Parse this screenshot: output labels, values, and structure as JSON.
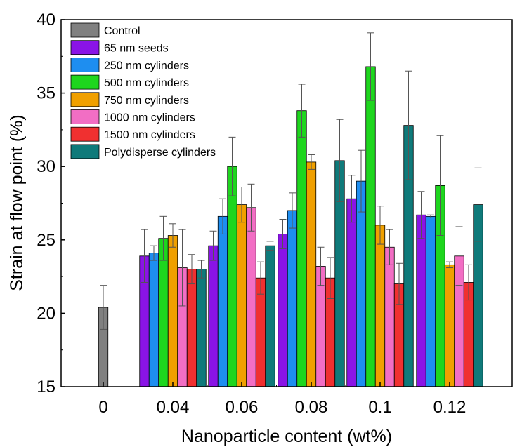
{
  "chart_data": {
    "type": "bar",
    "xlabel": "Nanoparticle content (wt%)",
    "ylabel": "Strain at flow point (%)",
    "ylim": [
      15,
      40
    ],
    "yticks": [
      15,
      20,
      25,
      30,
      35,
      40
    ],
    "categories": [
      "0",
      "0.04",
      "0.06",
      "0.08",
      "0.1",
      "0.12"
    ],
    "legend_position": "top-left",
    "series": [
      {
        "name": "Control",
        "color": "#808080",
        "values": [
          20.4,
          null,
          null,
          null,
          null,
          null
        ],
        "errors": [
          1.5,
          null,
          null,
          null,
          null,
          null
        ]
      },
      {
        "name": "65 nm seeds",
        "color": "#8a14e6",
        "values": [
          null,
          23.9,
          24.6,
          25.4,
          27.8,
          26.7
        ],
        "errors": [
          null,
          1.8,
          1.0,
          1.0,
          1.6,
          1.6
        ]
      },
      {
        "name": "250 nm cylinders",
        "color": "#1e8ef0",
        "values": [
          null,
          24.1,
          26.6,
          27.0,
          29.0,
          26.6
        ],
        "errors": [
          null,
          0.5,
          1.2,
          1.2,
          2.1,
          0.1
        ]
      },
      {
        "name": "500 nm cylinders",
        "color": "#1ed61e",
        "values": [
          null,
          25.1,
          30.0,
          33.8,
          36.8,
          28.7
        ],
        "errors": [
          null,
          1.5,
          2.0,
          1.8,
          2.3,
          3.4
        ]
      },
      {
        "name": "750 nm cylinders",
        "color": "#f0a000",
        "values": [
          null,
          25.3,
          27.4,
          30.3,
          26.0,
          23.3
        ],
        "errors": [
          null,
          0.8,
          1.2,
          0.5,
          1.3,
          0.2
        ]
      },
      {
        "name": "1000 nm cylinders",
        "color": "#f26ec4",
        "values": [
          null,
          23.1,
          27.2,
          23.2,
          24.5,
          23.9
        ],
        "errors": [
          null,
          2.6,
          1.6,
          1.3,
          1.2,
          2.0
        ]
      },
      {
        "name": "1500 nm cylinders",
        "color": "#f03030",
        "values": [
          null,
          23.0,
          22.4,
          22.4,
          22.0,
          22.1
        ],
        "errors": [
          null,
          1.0,
          1.1,
          1.4,
          1.4,
          1.2
        ]
      },
      {
        "name": "Polydisperse cylinders",
        "color": "#0f7a7a",
        "values": [
          null,
          23.0,
          24.6,
          30.4,
          32.8,
          27.4
        ],
        "errors": [
          null,
          0.6,
          0.3,
          2.8,
          3.7,
          2.5
        ]
      }
    ]
  }
}
